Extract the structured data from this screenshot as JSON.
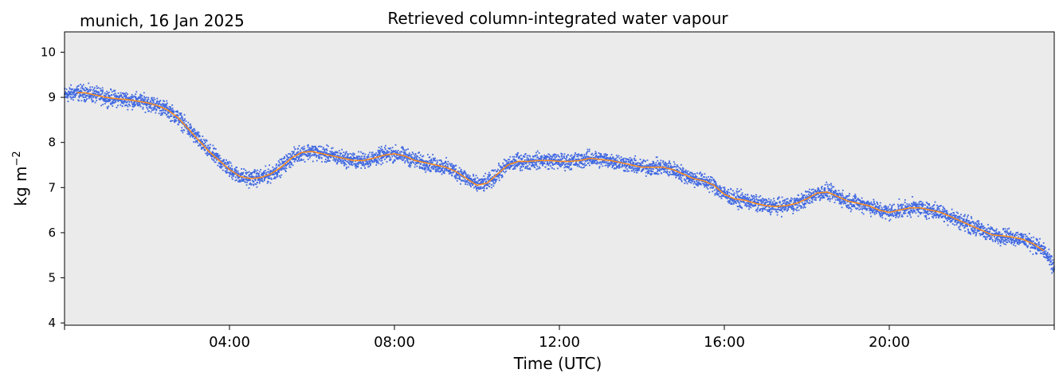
{
  "location_label": "munich, 16 Jan 2025",
  "chart_data": {
    "type": "scatter",
    "title": "Retrieved column-integrated water vapour",
    "xlabel": "Time (UTC)",
    "ylabel": "kg m",
    "ylabel_exp": "−2",
    "xlim_hours": [
      0,
      24
    ],
    "ylim": [
      3.95,
      10.45
    ],
    "yticks": [
      "4",
      "5",
      "6",
      "7",
      "8",
      "9",
      "10"
    ],
    "xticks": [
      "04:00",
      "08:00",
      "12:00",
      "16:00",
      "20:00"
    ],
    "grid": false,
    "background": "#ebebeb",
    "series": [
      {
        "style": "points",
        "color": "#4169e1",
        "x_hours": [
          0,
          0.25,
          0.5,
          0.75,
          1.0,
          1.25,
          1.5,
          1.75,
          2.0,
          2.25,
          2.5,
          2.75,
          3.0,
          3.25,
          3.5,
          3.75,
          4.0,
          4.25,
          4.5,
          4.75,
          5.0,
          5.25,
          5.5,
          5.75,
          6.0,
          6.25,
          6.5,
          6.75,
          7.0,
          7.25,
          7.5,
          7.75,
          8.0,
          8.25,
          8.5,
          8.75,
          9.0,
          9.25,
          9.5,
          9.75,
          10.0,
          10.25,
          10.5,
          10.75,
          11.0,
          11.25,
          11.5,
          11.75,
          12.0,
          12.25,
          12.5,
          12.75,
          13.0,
          13.25,
          13.5,
          13.75,
          14.0,
          14.25,
          14.5,
          14.75,
          15.0,
          15.25,
          15.5,
          15.75,
          16.0,
          16.25,
          16.5,
          16.75,
          17.0,
          17.25,
          17.5,
          17.75,
          18.0,
          18.25,
          18.5,
          18.75,
          19.0,
          19.25,
          19.5,
          19.75,
          20.0,
          20.25,
          20.5,
          20.75,
          21.0,
          21.25,
          21.5,
          21.75,
          22.0,
          22.25,
          22.5,
          22.75,
          23.0,
          23.25,
          23.5,
          23.75,
          24.0
        ],
        "values": [
          9.05,
          9.1,
          9.1,
          9.05,
          9.0,
          8.97,
          8.95,
          8.92,
          8.88,
          8.82,
          8.72,
          8.55,
          8.3,
          8.05,
          7.8,
          7.6,
          7.4,
          7.25,
          7.2,
          7.22,
          7.3,
          7.45,
          7.65,
          7.78,
          7.8,
          7.75,
          7.7,
          7.65,
          7.6,
          7.6,
          7.65,
          7.72,
          7.75,
          7.7,
          7.6,
          7.55,
          7.5,
          7.45,
          7.35,
          7.2,
          7.05,
          7.1,
          7.3,
          7.5,
          7.58,
          7.58,
          7.6,
          7.6,
          7.58,
          7.58,
          7.6,
          7.65,
          7.62,
          7.6,
          7.55,
          7.5,
          7.45,
          7.45,
          7.45,
          7.4,
          7.3,
          7.2,
          7.15,
          7.05,
          6.85,
          6.75,
          6.72,
          6.65,
          6.6,
          6.58,
          6.6,
          6.65,
          6.75,
          6.88,
          6.9,
          6.8,
          6.7,
          6.65,
          6.6,
          6.5,
          6.45,
          6.5,
          6.55,
          6.55,
          6.5,
          6.45,
          6.35,
          6.25,
          6.15,
          6.05,
          5.95,
          5.93,
          5.9,
          5.85,
          5.75,
          5.6,
          5.2
        ]
      },
      {
        "style": "line",
        "color": "#ff8c1a",
        "x_hours": [
          0.3,
          0.5,
          0.75,
          1.0,
          1.25,
          1.5,
          1.75,
          2.0,
          2.25,
          2.5,
          2.75,
          3.0,
          3.25,
          3.5,
          3.75,
          4.0,
          4.25,
          4.5,
          4.75,
          5.0,
          5.25,
          5.5,
          5.75,
          6.0,
          6.25,
          6.5,
          6.75,
          7.0,
          7.25,
          7.5,
          7.75,
          8.0,
          8.25,
          8.5,
          8.75,
          9.0,
          9.25,
          9.5,
          9.75,
          10.0,
          10.25,
          10.5,
          10.75,
          11.0,
          11.25,
          11.5,
          11.75,
          12.0,
          12.25,
          12.5,
          12.75,
          13.0,
          13.25,
          13.5,
          13.75,
          14.0,
          14.25,
          14.5,
          14.75,
          15.0,
          15.25,
          15.5,
          15.75,
          16.0,
          16.25,
          16.5,
          16.75,
          17.0,
          17.25,
          17.5,
          17.75,
          18.0,
          18.25,
          18.5,
          18.75,
          19.0,
          19.25,
          19.5,
          19.75,
          20.0,
          20.25,
          20.5,
          20.75,
          21.0,
          21.25,
          21.5,
          21.75,
          22.0,
          22.25,
          22.5,
          22.75,
          23.0,
          23.25,
          23.5,
          23.75
        ],
        "values": [
          9.1,
          9.1,
          9.05,
          9.0,
          8.97,
          8.95,
          8.92,
          8.88,
          8.82,
          8.72,
          8.55,
          8.3,
          8.05,
          7.8,
          7.6,
          7.4,
          7.25,
          7.2,
          7.22,
          7.3,
          7.45,
          7.65,
          7.78,
          7.8,
          7.75,
          7.7,
          7.65,
          7.6,
          7.6,
          7.65,
          7.72,
          7.75,
          7.7,
          7.6,
          7.55,
          7.5,
          7.45,
          7.35,
          7.2,
          7.05,
          7.1,
          7.3,
          7.5,
          7.58,
          7.58,
          7.6,
          7.6,
          7.58,
          7.58,
          7.6,
          7.65,
          7.62,
          7.6,
          7.55,
          7.5,
          7.45,
          7.45,
          7.45,
          7.4,
          7.3,
          7.2,
          7.15,
          7.05,
          6.85,
          6.75,
          6.72,
          6.65,
          6.6,
          6.58,
          6.6,
          6.65,
          6.75,
          6.88,
          6.9,
          6.8,
          6.7,
          6.65,
          6.6,
          6.5,
          6.45,
          6.5,
          6.55,
          6.55,
          6.5,
          6.45,
          6.35,
          6.25,
          6.15,
          6.05,
          5.95,
          5.93,
          5.9,
          5.85,
          5.75,
          5.6
        ]
      }
    ]
  }
}
